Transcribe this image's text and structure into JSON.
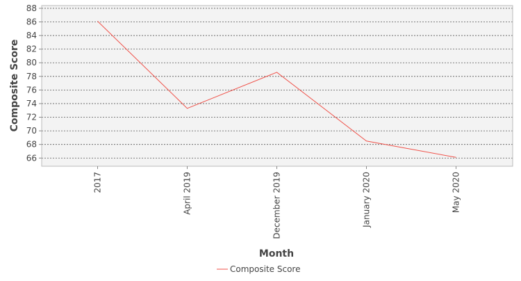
{
  "chart_data": {
    "type": "line",
    "title": "",
    "xlabel": "Month",
    "ylabel": "Composite Score",
    "categories": [
      "2017",
      "April 2019",
      "December 2019",
      "January 2020",
      "May 2020"
    ],
    "series": [
      {
        "name": "Composite Score",
        "color": "#f0524a",
        "values": [
          86.1,
          73.3,
          78.6,
          68.5,
          66.1
        ]
      }
    ],
    "ylim": [
      64.8,
      88.4
    ],
    "yticks": [
      "66",
      "68",
      "70",
      "72",
      "74",
      "76",
      "78",
      "80",
      "82",
      "84",
      "86",
      "88"
    ],
    "grid": true,
    "legend_position": "bottom-center"
  }
}
